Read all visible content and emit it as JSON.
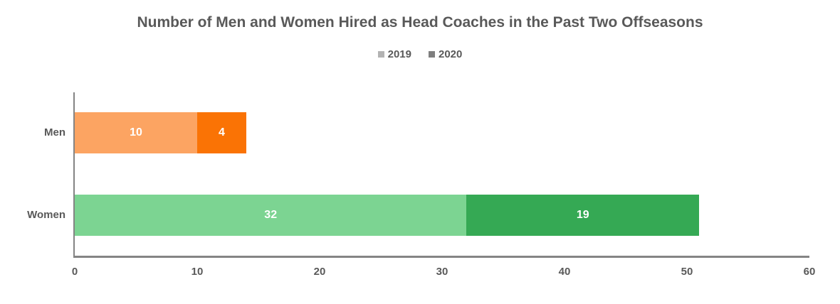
{
  "chart_data": {
    "type": "bar",
    "orientation": "horizontal",
    "stacked": true,
    "title": "Number of Men and Women Hired as Head Coaches in the Past Two Offseasons",
    "categories": [
      "Men",
      "Women"
    ],
    "series": [
      {
        "name": "2019",
        "values": [
          10,
          32
        ],
        "segment_colors": [
          "#FCA462",
          "#7CD492"
        ],
        "legend_swatch_color": "#B3B3B3"
      },
      {
        "name": "2020",
        "values": [
          4,
          19
        ],
        "segment_colors": [
          "#FA7305",
          "#35A954"
        ],
        "legend_swatch_color": "#7F7F7F"
      }
    ],
    "xlabel": "",
    "ylabel": "",
    "xlim": [
      0,
      60
    ],
    "x_ticks": [
      0,
      10,
      20,
      30,
      40,
      50,
      60
    ],
    "grid": false,
    "legend_position": "top-center",
    "data_labels": "inside-center-white",
    "colors": {
      "title_text": "#595959",
      "axis_text": "#595959",
      "axis_line": "#848484",
      "background": "#FFFFFF"
    }
  }
}
